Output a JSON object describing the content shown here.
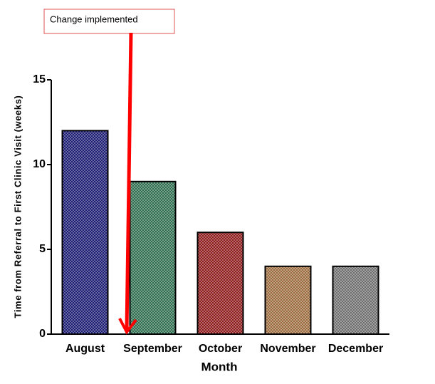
{
  "chart_data": {
    "type": "bar",
    "categories": [
      "August",
      "September",
      "October",
      "November",
      "December"
    ],
    "values": [
      12,
      9,
      6,
      4,
      4
    ],
    "colors": [
      "#1c1c72",
      "#2f6e50",
      "#8e1c1c",
      "#9c6d40",
      "#6e6e6e"
    ],
    "ylim": [
      0,
      15
    ],
    "yticks": [
      0,
      5,
      10,
      15
    ],
    "xlabel": "Month",
    "ylabel": "Time from  Referral to First  Clinic Visit (weeks)",
    "annotation": "Change implemented"
  }
}
